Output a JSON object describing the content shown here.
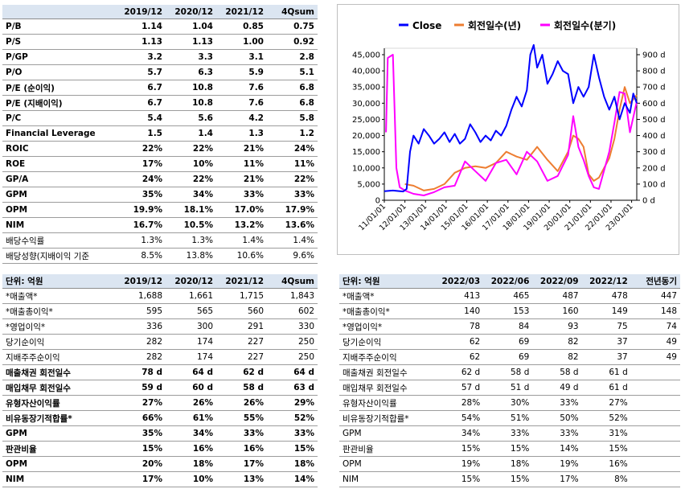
{
  "valuation_table": {
    "headers": [
      "",
      "2019/12",
      "2020/12",
      "2021/12",
      "4Qsum"
    ],
    "rows": [
      {
        "label": "P/B",
        "values": [
          "1.14",
          "1.04",
          "0.85",
          "0.75"
        ],
        "bold": true
      },
      {
        "label": "P/S",
        "values": [
          "1.13",
          "1.13",
          "1.00",
          "0.92"
        ],
        "bold": true
      },
      {
        "label": "P/GP",
        "values": [
          "3.2",
          "3.3",
          "3.1",
          "2.8"
        ],
        "bold": true
      },
      {
        "label": "P/O",
        "values": [
          "5.7",
          "6.3",
          "5.9",
          "5.1"
        ],
        "bold": true
      },
      {
        "label": "P/E (순이익)",
        "values": [
          "6.7",
          "10.8",
          "7.6",
          "6.8"
        ],
        "bold": true
      },
      {
        "label": "P/E (지배이익)",
        "values": [
          "6.7",
          "10.8",
          "7.6",
          "6.8"
        ],
        "bold": true
      },
      {
        "label": "P/C",
        "values": [
          "5.4",
          "5.6",
          "4.2",
          "5.8"
        ],
        "bold": true
      },
      {
        "label": "Financial Leverage",
        "values": [
          "1.5",
          "1.4",
          "1.3",
          "1.2"
        ],
        "bold": true
      },
      {
        "label": "ROIC",
        "values": [
          "22%",
          "22%",
          "21%",
          "24%"
        ],
        "bold": true
      },
      {
        "label": "ROE",
        "values": [
          "17%",
          "10%",
          "11%",
          "11%"
        ],
        "bold": true
      },
      {
        "label": "GP/A",
        "values": [
          "24%",
          "22%",
          "21%",
          "22%"
        ],
        "bold": true
      },
      {
        "label": "GPM",
        "values": [
          "35%",
          "34%",
          "33%",
          "33%"
        ],
        "bold": true
      },
      {
        "label": "OPM",
        "values": [
          "19.9%",
          "18.1%",
          "17.0%",
          "17.9%"
        ],
        "bold": true
      },
      {
        "label": "NIM",
        "values": [
          "16.7%",
          "10.5%",
          "13.2%",
          "13.6%"
        ],
        "bold": true
      },
      {
        "label": "배당수익률",
        "values": [
          "1.3%",
          "1.3%",
          "1.4%",
          "1.4%"
        ],
        "bold": false
      },
      {
        "label": "배당성향(지배이익 기준",
        "values": [
          "8.5%",
          "13.8%",
          "10.6%",
          "9.6%"
        ],
        "bold": false
      }
    ]
  },
  "annual_table": {
    "headers": [
      "단위: 억원",
      "2019/12",
      "2020/12",
      "2021/12",
      "4Qsum"
    ],
    "rows": [
      {
        "label": "*매출액*",
        "values": [
          "1,688",
          "1,661",
          "1,715",
          "1,843"
        ],
        "bold": false
      },
      {
        "label": "*매출총이익*",
        "values": [
          "595",
          "565",
          "560",
          "602"
        ],
        "bold": false
      },
      {
        "label": "*영업이익*",
        "values": [
          "336",
          "300",
          "291",
          "330"
        ],
        "bold": false
      },
      {
        "label": "당기순이익",
        "values": [
          "282",
          "174",
          "227",
          "250"
        ],
        "bold": false
      },
      {
        "label": "지배주주순이익",
        "values": [
          "282",
          "174",
          "227",
          "250"
        ],
        "bold": false
      },
      {
        "label": "매출채권 회전일수",
        "values": [
          "78 d",
          "64 d",
          "62 d",
          "64 d"
        ],
        "bold": true
      },
      {
        "label": "매입채무 회전일수",
        "values": [
          "59 d",
          "60 d",
          "58 d",
          "63 d"
        ],
        "bold": true
      },
      {
        "label": "유형자산이익률",
        "values": [
          "27%",
          "26%",
          "26%",
          "29%"
        ],
        "bold": true
      },
      {
        "label": "비유동장기적합률*",
        "values": [
          "66%",
          "61%",
          "55%",
          "52%"
        ],
        "bold": true
      },
      {
        "label": "GPM",
        "values": [
          "35%",
          "34%",
          "33%",
          "33%"
        ],
        "bold": true
      },
      {
        "label": "판관비율",
        "values": [
          "15%",
          "16%",
          "16%",
          "15%"
        ],
        "bold": true
      },
      {
        "label": "OPM",
        "values": [
          "20%",
          "18%",
          "17%",
          "18%"
        ],
        "bold": true
      },
      {
        "label": "NIM",
        "values": [
          "17%",
          "10%",
          "13%",
          "14%"
        ],
        "bold": true
      }
    ]
  },
  "quarterly_table": {
    "headers": [
      "단위: 억원",
      "2022/03",
      "2022/06",
      "2022/09",
      "2022/12",
      "전년동기"
    ],
    "rows": [
      {
        "label": "*매출액*",
        "values": [
          "413",
          "465",
          "487",
          "478",
          "447"
        ]
      },
      {
        "label": "*매출총이익*",
        "values": [
          "140",
          "153",
          "160",
          "149",
          "148"
        ]
      },
      {
        "label": "*영업이익*",
        "values": [
          "78",
          "84",
          "93",
          "75",
          "74"
        ]
      },
      {
        "label": "당기순이익",
        "values": [
          "62",
          "69",
          "82",
          "37",
          "49"
        ]
      },
      {
        "label": "지배주주순이익",
        "values": [
          "62",
          "69",
          "82",
          "37",
          "49"
        ]
      },
      {
        "label": "매출채권 회전일수",
        "values": [
          "62 d",
          "58 d",
          "58 d",
          "61 d",
          ""
        ]
      },
      {
        "label": "매입채무 회전일수",
        "values": [
          "57 d",
          "51 d",
          "49 d",
          "61 d",
          ""
        ]
      },
      {
        "label": "유형자산이익률",
        "values": [
          "28%",
          "30%",
          "33%",
          "27%",
          ""
        ]
      },
      {
        "label": "비유동장기적합률*",
        "values": [
          "54%",
          "51%",
          "50%",
          "52%",
          ""
        ]
      },
      {
        "label": "GPM",
        "values": [
          "34%",
          "33%",
          "33%",
          "31%",
          ""
        ]
      },
      {
        "label": "판관비율",
        "values": [
          "15%",
          "15%",
          "14%",
          "15%",
          ""
        ]
      },
      {
        "label": "OPM",
        "values": [
          "19%",
          "18%",
          "19%",
          "16%",
          ""
        ]
      },
      {
        "label": "NIM",
        "values": [
          "15%",
          "15%",
          "17%",
          "8%",
          ""
        ]
      }
    ]
  },
  "chart_data": {
    "type": "line",
    "legend": [
      "Close",
      "회전일수(년)",
      "회전일수(분기)"
    ],
    "legend_position": "top",
    "colors": {
      "close": "#0000ff",
      "annual": "#ed7d31",
      "quarterly": "#ff00ff"
    },
    "y_left": {
      "ticks": [
        "0",
        "5,000",
        "10,000",
        "15,000",
        "20,000",
        "25,000",
        "30,000",
        "35,000",
        "40,000",
        "45,000"
      ],
      "range": [
        0,
        45000
      ]
    },
    "y_right": {
      "ticks": [
        "0 d",
        "100 d",
        "200 d",
        "300 d",
        "400 d",
        "500 d",
        "600 d",
        "700 d",
        "800 d",
        "900 d"
      ],
      "range": [
        0,
        900
      ]
    },
    "x_ticks": [
      "11/01/01",
      "12/01/01",
      "13/01/01",
      "14/01/01",
      "15/01/01",
      "16/01/01",
      "17/01/01",
      "18/01/01",
      "19/01/01",
      "20/01/01",
      "21/01/01",
      "22/01/01",
      "23/01/01"
    ],
    "x_range": [
      "2011-01",
      "2023-04"
    ],
    "series": [
      {
        "name": "Close",
        "axis": "left",
        "points": [
          [
            "2011-01",
            2800
          ],
          [
            "2011-06",
            3000
          ],
          [
            "2011-12",
            2700
          ],
          [
            "2012-02",
            3500
          ],
          [
            "2012-04",
            15000
          ],
          [
            "2012-06",
            20000
          ],
          [
            "2012-09",
            17500
          ],
          [
            "2012-12",
            22000
          ],
          [
            "2013-03",
            20000
          ],
          [
            "2013-06",
            17500
          ],
          [
            "2013-09",
            19000
          ],
          [
            "2013-12",
            21000
          ],
          [
            "2014-03",
            18000
          ],
          [
            "2014-06",
            20500
          ],
          [
            "2014-09",
            17500
          ],
          [
            "2014-12",
            19000
          ],
          [
            "2015-03",
            23500
          ],
          [
            "2015-06",
            21000
          ],
          [
            "2015-09",
            18000
          ],
          [
            "2015-12",
            20000
          ],
          [
            "2016-03",
            18500
          ],
          [
            "2016-06",
            21500
          ],
          [
            "2016-09",
            20000
          ],
          [
            "2016-12",
            23000
          ],
          [
            "2017-03",
            28000
          ],
          [
            "2017-06",
            32000
          ],
          [
            "2017-09",
            29000
          ],
          [
            "2017-12",
            34000
          ],
          [
            "2018-02",
            45000
          ],
          [
            "2018-04",
            48000
          ],
          [
            "2018-06",
            41000
          ],
          [
            "2018-09",
            45000
          ],
          [
            "2018-12",
            36000
          ],
          [
            "2019-03",
            39000
          ],
          [
            "2019-06",
            43000
          ],
          [
            "2019-09",
            40000
          ],
          [
            "2019-12",
            39000
          ],
          [
            "2020-03",
            30000
          ],
          [
            "2020-06",
            35000
          ],
          [
            "2020-09",
            32000
          ],
          [
            "2020-12",
            35000
          ],
          [
            "2021-03",
            45000
          ],
          [
            "2021-06",
            38000
          ],
          [
            "2021-09",
            32000
          ],
          [
            "2021-12",
            28000
          ],
          [
            "2022-03",
            32000
          ],
          [
            "2022-06",
            25000
          ],
          [
            "2022-09",
            30000
          ],
          [
            "2022-12",
            27000
          ],
          [
            "2023-02",
            33000
          ],
          [
            "2023-04",
            30000
          ]
        ]
      },
      {
        "name": "회전일수(년)",
        "axis": "right",
        "points": [
          [
            "2012-01",
            100
          ],
          [
            "2012-06",
            90
          ],
          [
            "2012-12",
            60
          ],
          [
            "2013-06",
            70
          ],
          [
            "2013-12",
            100
          ],
          [
            "2014-06",
            170
          ],
          [
            "2014-12",
            200
          ],
          [
            "2015-06",
            210
          ],
          [
            "2015-12",
            200
          ],
          [
            "2016-06",
            230
          ],
          [
            "2016-12",
            300
          ],
          [
            "2017-06",
            270
          ],
          [
            "2017-12",
            250
          ],
          [
            "2018-06",
            330
          ],
          [
            "2018-12",
            250
          ],
          [
            "2019-06",
            180
          ],
          [
            "2019-12",
            300
          ],
          [
            "2020-03",
            400
          ],
          [
            "2020-06",
            380
          ],
          [
            "2020-09",
            330
          ],
          [
            "2020-12",
            160
          ],
          [
            "2021-03",
            120
          ],
          [
            "2021-06",
            140
          ],
          [
            "2021-12",
            260
          ],
          [
            "2022-03",
            380
          ],
          [
            "2022-06",
            560
          ],
          [
            "2022-09",
            700
          ],
          [
            "2022-12",
            600
          ],
          [
            "2023-04",
            650
          ]
        ]
      },
      {
        "name": "회전일수(분기)",
        "axis": "right",
        "points": [
          [
            "2011-02",
            420
          ],
          [
            "2011-03",
            880
          ],
          [
            "2011-06",
            900
          ],
          [
            "2011-08",
            200
          ],
          [
            "2011-10",
            80
          ],
          [
            "2012-01",
            60
          ],
          [
            "2012-06",
            40
          ],
          [
            "2012-12",
            30
          ],
          [
            "2013-06",
            50
          ],
          [
            "2013-12",
            80
          ],
          [
            "2014-06",
            90
          ],
          [
            "2014-12",
            240
          ],
          [
            "2015-06",
            180
          ],
          [
            "2015-12",
            120
          ],
          [
            "2016-06",
            230
          ],
          [
            "2016-12",
            250
          ],
          [
            "2017-06",
            160
          ],
          [
            "2017-12",
            300
          ],
          [
            "2018-06",
            240
          ],
          [
            "2018-12",
            120
          ],
          [
            "2019-06",
            150
          ],
          [
            "2019-12",
            280
          ],
          [
            "2020-03",
            520
          ],
          [
            "2020-06",
            330
          ],
          [
            "2020-09",
            250
          ],
          [
            "2020-12",
            150
          ],
          [
            "2021-03",
            80
          ],
          [
            "2021-06",
            70
          ],
          [
            "2021-12",
            300
          ],
          [
            "2022-03",
            480
          ],
          [
            "2022-06",
            670
          ],
          [
            "2022-09",
            660
          ],
          [
            "2022-12",
            420
          ],
          [
            "2023-04",
            610
          ]
        ]
      }
    ]
  }
}
